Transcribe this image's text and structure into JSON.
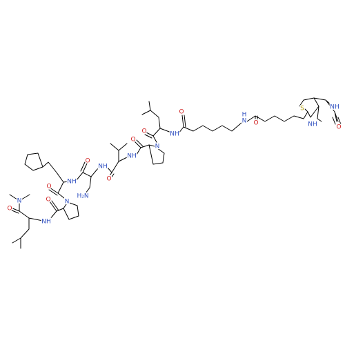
{
  "atoms": [
    "N",
    "O",
    "NH",
    "O",
    "N",
    "O",
    "NH",
    "O",
    "H₂N",
    "NH",
    "O",
    "NH",
    "O",
    "N",
    "O",
    "NH",
    "O",
    "H",
    "N",
    "O",
    "S",
    "NH",
    "NH",
    "O"
  ]
}
